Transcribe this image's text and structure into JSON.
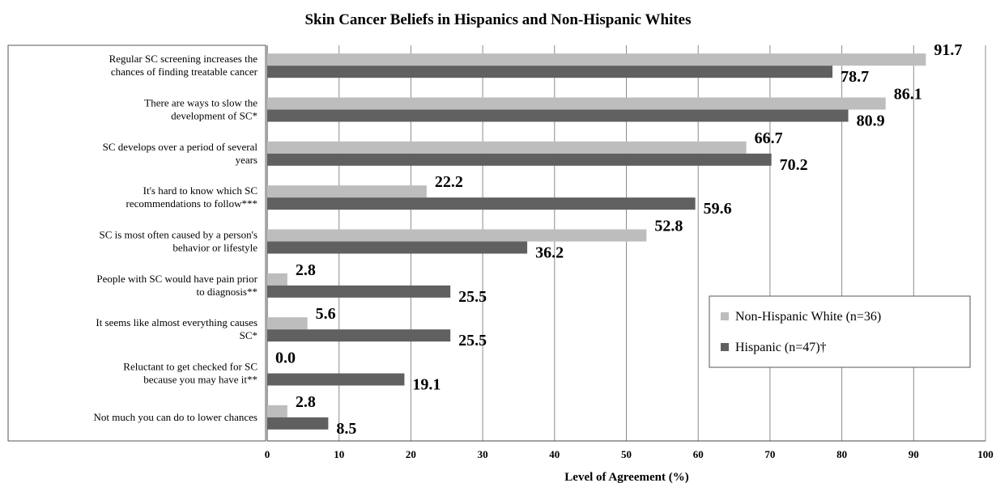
{
  "chart_data": {
    "type": "bar",
    "orientation": "horizontal",
    "title": "Skin Cancer Beliefs in Hispanics and Non-Hispanic Whites",
    "xlabel": "Level of Agreement (%)",
    "ylabel": "",
    "xlim": [
      0,
      100
    ],
    "ticks": [
      "0",
      "10",
      "20",
      "30",
      "40",
      "50",
      "60",
      "70",
      "80",
      "90",
      "100"
    ],
    "grid": true,
    "legend_position": "lower-right",
    "categories": [
      [
        "Regular SC screening increases the",
        "chances of finding treatable cancer"
      ],
      [
        "There are ways to slow the",
        "development of SC*"
      ],
      [
        "SC develops over a period of  several",
        "years"
      ],
      [
        "It's hard to know which SC",
        "recommendations to follow***"
      ],
      [
        "SC is most often caused by a person's",
        "behavior or lifestyle"
      ],
      [
        "People with SC would have pain prior",
        "to diagnosis**"
      ],
      [
        "It seems like almost everything causes",
        "SC*"
      ],
      [
        "Reluctant to get checked for SC",
        "because you may have it**"
      ],
      [
        "Not much you can do to lower chances"
      ]
    ],
    "series": [
      {
        "name": "Non-Hispanic White (n=36)",
        "color": "#bdbdbd",
        "values": [
          91.7,
          86.1,
          66.7,
          22.2,
          52.8,
          2.8,
          5.6,
          0.0,
          2.8
        ],
        "labels": [
          "91.7",
          "86.1",
          "66.7",
          "22.2",
          "52.8",
          "2.8",
          "5.6",
          "0.0",
          "2.8"
        ]
      },
      {
        "name": "Hispanic (n=47)†",
        "color": "#606060",
        "values": [
          78.7,
          80.9,
          70.2,
          59.6,
          36.2,
          25.5,
          25.5,
          19.1,
          8.5
        ],
        "labels": [
          "78.7",
          "80.9",
          "70.2",
          "59.6",
          "36.2",
          "25.5",
          "25.5",
          "19.1",
          "8.5"
        ]
      }
    ]
  }
}
